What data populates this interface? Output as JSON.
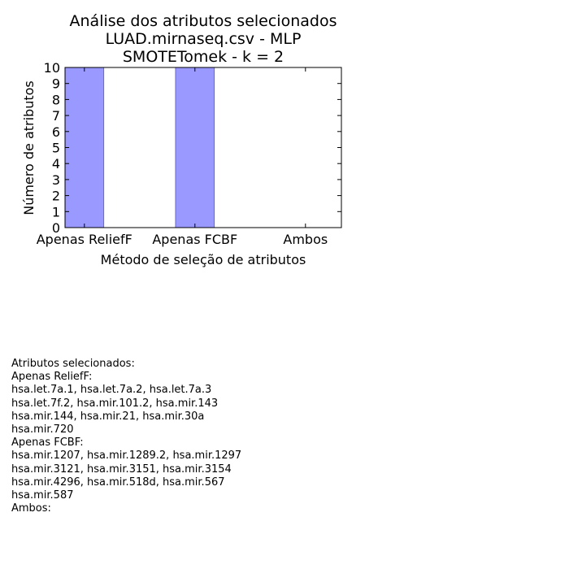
{
  "chart_data": {
    "type": "bar",
    "title_lines": [
      "Análise dos atributos selecionados",
      "LUAD.mirnaseq.csv - MLP",
      "SMOTETomek - k = 2"
    ],
    "categories": [
      "Apenas ReliefF",
      "Apenas FCBF",
      "Ambos"
    ],
    "values": [
      10,
      10,
      0
    ],
    "xlabel": "Método de seleção de atributos",
    "ylabel": "Número de atributos",
    "ylim": [
      0,
      10
    ],
    "yticks": [
      "0",
      "1",
      "2",
      "3",
      "4",
      "5",
      "6",
      "7",
      "8",
      "9",
      "10"
    ],
    "grid": false,
    "bar_color": "#9999ff",
    "bar_edge_color": "#6666cc"
  },
  "attributes_text": [
    "Atributos selecionados:",
    "Apenas ReliefF:",
    "hsa.let.7a.1, hsa.let.7a.2, hsa.let.7a.3",
    "hsa.let.7f.2, hsa.mir.101.2, hsa.mir.143",
    "hsa.mir.144, hsa.mir.21, hsa.mir.30a",
    "hsa.mir.720",
    "Apenas FCBF:",
    "hsa.mir.1207, hsa.mir.1289.2, hsa.mir.1297",
    "hsa.mir.3121, hsa.mir.3151, hsa.mir.3154",
    "hsa.mir.4296, hsa.mir.518d, hsa.mir.567",
    "hsa.mir.587",
    "Ambos:"
  ]
}
